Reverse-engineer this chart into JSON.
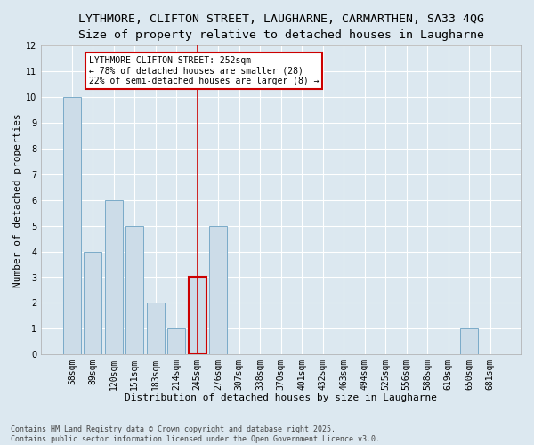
{
  "title_line1": "LYTHMORE, CLIFTON STREET, LAUGHARNE, CARMARTHEN, SA33 4QG",
  "title_line2": "Size of property relative to detached houses in Laugharne",
  "xlabel": "Distribution of detached houses by size in Laugharne",
  "ylabel": "Number of detached properties",
  "categories": [
    "58sqm",
    "89sqm",
    "120sqm",
    "151sqm",
    "183sqm",
    "214sqm",
    "245sqm",
    "276sqm",
    "307sqm",
    "338sqm",
    "370sqm",
    "401sqm",
    "432sqm",
    "463sqm",
    "494sqm",
    "525sqm",
    "556sqm",
    "588sqm",
    "619sqm",
    "650sqm",
    "681sqm"
  ],
  "values": [
    10,
    4,
    6,
    5,
    2,
    1,
    3,
    5,
    0,
    0,
    0,
    0,
    0,
    0,
    0,
    0,
    0,
    0,
    0,
    1,
    0
  ],
  "bar_color": "#ccdce8",
  "bar_edge_color": "#7aaac8",
  "highlight_index": 6,
  "highlight_line_color": "#cc0000",
  "annotation_text": "LYTHMORE CLIFTON STREET: 252sqm\n← 78% of detached houses are smaller (28)\n22% of semi-detached houses are larger (8) →",
  "annotation_box_color": "#ffffff",
  "annotation_box_edge": "#cc0000",
  "ylim": [
    0,
    12
  ],
  "yticks": [
    0,
    1,
    2,
    3,
    4,
    5,
    6,
    7,
    8,
    9,
    10,
    11,
    12
  ],
  "plot_bg_color": "#dce8f0",
  "fig_bg_color": "#dce8f0",
  "grid_color": "#ffffff",
  "footnote": "Contains HM Land Registry data © Crown copyright and database right 2025.\nContains public sector information licensed under the Open Government Licence v3.0.",
  "title_fontsize": 9.5,
  "subtitle_fontsize": 8.5,
  "tick_fontsize": 7,
  "xlabel_fontsize": 8,
  "ylabel_fontsize": 8,
  "annot_fontsize": 7,
  "footnote_fontsize": 6
}
